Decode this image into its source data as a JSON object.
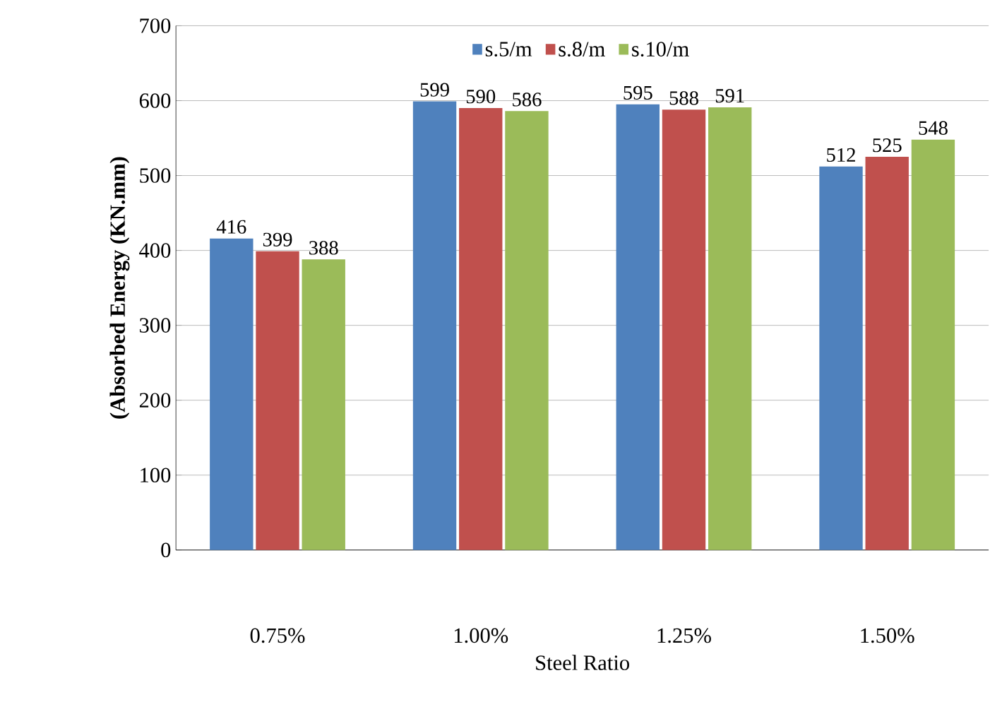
{
  "chart_data": {
    "type": "bar",
    "xlabel": "Steel Ratio",
    "ylabel": "(Absorbed Energy (KN.mm)",
    "categories": [
      "0.75%",
      "1.00%",
      "1.25%",
      "1.50%"
    ],
    "series": [
      {
        "name": "s.5/m",
        "color": "#4f81bd",
        "values": [
          416,
          599,
          595,
          512
        ]
      },
      {
        "name": "s.8/m",
        "color": "#c0504d",
        "values": [
          399,
          590,
          588,
          525
        ]
      },
      {
        "name": "s.10/m",
        "color": "#9bbb59",
        "values": [
          388,
          586,
          591,
          548
        ]
      }
    ],
    "ylim": [
      0,
      700
    ],
    "yticks": [
      0,
      100,
      200,
      300,
      400,
      500,
      600,
      700
    ],
    "grid": "y",
    "legend": "top",
    "data_labels": true
  }
}
